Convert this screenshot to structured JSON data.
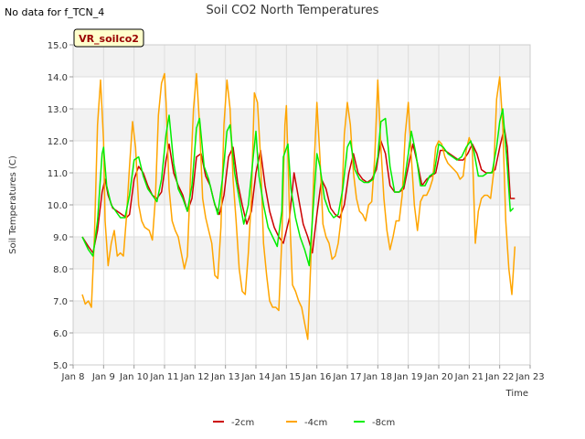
{
  "nodata_text": "No data for f_TCN_4",
  "chart_data": {
    "type": "line",
    "title": "Soil CO2 North Temperatures",
    "xlabel": "Time",
    "ylabel": "Soil Temperatures (C)",
    "ylim": [
      5.0,
      15.0
    ],
    "xlim": [
      8,
      23
    ],
    "x_ticks": [
      "Jan 8",
      "Jan 9",
      "Jan 10",
      "Jan 11",
      "Jan 12",
      "Jan 13",
      "Jan 14",
      "Jan 15",
      "Jan 16",
      "Jan 17",
      "Jan 18",
      "Jan 19",
      "Jan 20",
      "Jan 21",
      "Jan 22",
      "Jan 23"
    ],
    "y_ticks": [
      "5.0",
      "6.0",
      "7.0",
      "8.0",
      "9.0",
      "10.0",
      "11.0",
      "12.0",
      "13.0",
      "14.0",
      "15.0"
    ],
    "station_label": "VR_soilco2",
    "grid": true,
    "legend_position": "bottom-center",
    "series": [
      {
        "name": "-2cm",
        "color": "#cc0000",
        "x": [
          8.3,
          8.5,
          8.65,
          8.8,
          8.95,
          9.05,
          9.15,
          9.3,
          9.45,
          9.6,
          9.75,
          9.85,
          10.0,
          10.15,
          10.3,
          10.45,
          10.6,
          10.75,
          10.9,
          11.05,
          11.15,
          11.3,
          11.45,
          11.6,
          11.75,
          11.9,
          12.05,
          12.2,
          12.35,
          12.5,
          12.65,
          12.8,
          12.95,
          13.1,
          13.25,
          13.4,
          13.55,
          13.7,
          13.85,
          14.0,
          14.15,
          14.3,
          14.45,
          14.6,
          14.75,
          14.9,
          15.1,
          15.25,
          15.4,
          15.55,
          15.7,
          15.85,
          16.0,
          16.15,
          16.3,
          16.45,
          16.6,
          16.75,
          16.9,
          17.05,
          17.2,
          17.35,
          17.5,
          17.65,
          17.8,
          17.95,
          18.1,
          18.25,
          18.4,
          18.55,
          18.7,
          18.85,
          19.0,
          19.15,
          19.3,
          19.45,
          19.6,
          19.75,
          19.9,
          20.05,
          20.2,
          20.35,
          20.5,
          20.65,
          20.8,
          20.95,
          21.1,
          21.25,
          21.4,
          21.55,
          21.7,
          21.85,
          22.0,
          22.15,
          22.25,
          22.35,
          22.5
        ],
        "values": [
          9.0,
          8.7,
          8.5,
          9.2,
          10.4,
          10.8,
          10.3,
          9.9,
          9.8,
          9.7,
          9.6,
          9.7,
          10.8,
          11.2,
          11.0,
          10.6,
          10.3,
          10.2,
          10.4,
          11.4,
          11.9,
          11.0,
          10.6,
          10.3,
          9.8,
          10.2,
          11.5,
          11.6,
          10.9,
          10.6,
          10.0,
          9.7,
          10.3,
          11.5,
          11.8,
          10.7,
          10.0,
          9.4,
          9.8,
          11.0,
          11.7,
          10.6,
          9.8,
          9.3,
          9.0,
          8.8,
          9.6,
          11.0,
          10.2,
          9.4,
          9.0,
          8.5,
          9.7,
          10.8,
          10.5,
          9.9,
          9.7,
          9.6,
          10.0,
          11.0,
          11.6,
          11.0,
          10.8,
          10.7,
          10.8,
          11.1,
          12.0,
          11.6,
          10.6,
          10.4,
          10.4,
          10.5,
          11.2,
          11.9,
          11.3,
          10.6,
          10.8,
          10.9,
          11.0,
          11.7,
          11.7,
          11.6,
          11.5,
          11.4,
          11.4,
          11.6,
          11.9,
          11.6,
          11.1,
          11.0,
          11.0,
          11.1,
          11.8,
          12.4,
          11.8,
          10.2,
          10.2
        ]
      },
      {
        "name": "-4cm",
        "color": "#ffa500",
        "x": [
          8.3,
          8.4,
          8.5,
          8.6,
          8.7,
          8.8,
          8.9,
          9.0,
          9.05,
          9.15,
          9.25,
          9.35,
          9.45,
          9.55,
          9.65,
          9.75,
          9.85,
          9.95,
          10.05,
          10.15,
          10.25,
          10.35,
          10.5,
          10.6,
          10.7,
          10.8,
          10.9,
          11.0,
          11.05,
          11.15,
          11.25,
          11.35,
          11.45,
          11.55,
          11.65,
          11.75,
          11.85,
          11.95,
          12.05,
          12.15,
          12.25,
          12.35,
          12.45,
          12.55,
          12.65,
          12.75,
          12.85,
          12.95,
          13.05,
          13.15,
          13.25,
          13.35,
          13.45,
          13.55,
          13.65,
          13.75,
          13.85,
          13.95,
          14.05,
          14.15,
          14.25,
          14.35,
          14.45,
          14.55,
          14.65,
          14.75,
          14.85,
          14.95,
          15.0,
          15.1,
          15.2,
          15.3,
          15.4,
          15.5,
          15.6,
          15.7,
          15.8,
          15.9,
          16.0,
          16.1,
          16.2,
          16.3,
          16.4,
          16.5,
          16.6,
          16.7,
          16.8,
          16.9,
          17.0,
          17.1,
          17.2,
          17.3,
          17.4,
          17.5,
          17.6,
          17.7,
          17.8,
          17.9,
          18.0,
          18.1,
          18.2,
          18.3,
          18.4,
          18.5,
          18.6,
          18.7,
          18.8,
          18.9,
          19.0,
          19.1,
          19.2,
          19.3,
          19.4,
          19.5,
          19.6,
          19.7,
          19.8,
          19.9,
          20.0,
          20.1,
          20.2,
          20.3,
          20.4,
          20.5,
          20.6,
          20.7,
          20.8,
          20.9,
          21.0,
          21.1,
          21.2,
          21.3,
          21.4,
          21.5,
          21.6,
          21.7,
          21.8,
          21.9,
          22.0,
          22.1,
          22.2,
          22.3,
          22.4,
          22.5
        ],
        "values": [
          7.2,
          6.9,
          7.0,
          6.8,
          9.0,
          12.5,
          13.9,
          12.0,
          9.5,
          8.1,
          8.8,
          9.2,
          8.4,
          8.5,
          8.4,
          9.6,
          11.2,
          12.6,
          11.8,
          10.0,
          9.5,
          9.3,
          9.2,
          8.9,
          10.2,
          12.8,
          13.8,
          14.1,
          13.2,
          10.5,
          9.5,
          9.2,
          9.0,
          8.5,
          8.0,
          8.4,
          10.8,
          13.0,
          14.1,
          12.5,
          10.2,
          9.6,
          9.2,
          8.8,
          7.8,
          7.7,
          9.3,
          12.5,
          13.9,
          13.0,
          10.8,
          9.5,
          8.0,
          7.3,
          7.2,
          8.5,
          10.2,
          13.5,
          13.2,
          11.5,
          8.8,
          7.8,
          7.0,
          6.8,
          6.8,
          6.7,
          8.9,
          12.5,
          13.1,
          9.8,
          7.5,
          7.3,
          7.0,
          6.8,
          6.3,
          5.8,
          8.2,
          11.0,
          13.2,
          11.5,
          9.4,
          9.0,
          8.8,
          8.3,
          8.4,
          8.8,
          9.6,
          12.2,
          13.2,
          12.5,
          11.0,
          10.2,
          9.8,
          9.7,
          9.5,
          10.0,
          10.1,
          11.5,
          13.9,
          11.8,
          10.2,
          9.2,
          8.6,
          9.0,
          9.5,
          9.5,
          10.3,
          12.2,
          13.2,
          11.5,
          10.0,
          9.2,
          10.1,
          10.3,
          10.3,
          10.5,
          10.8,
          11.8,
          12.0,
          11.9,
          11.5,
          11.3,
          11.2,
          11.1,
          11.0,
          10.8,
          10.9,
          11.7,
          12.1,
          11.8,
          8.8,
          9.8,
          10.2,
          10.3,
          10.3,
          10.2,
          11.0,
          13.3,
          14.0,
          12.5,
          9.5,
          8.0,
          7.2,
          8.7
        ]
      },
      {
        "name": "-8cm",
        "color": "#00ee00",
        "x": [
          8.3,
          8.5,
          8.65,
          8.8,
          8.95,
          9.0,
          9.1,
          9.25,
          9.4,
          9.55,
          9.7,
          9.85,
          10.0,
          10.15,
          10.3,
          10.45,
          10.6,
          10.75,
          10.9,
          11.05,
          11.15,
          11.3,
          11.45,
          11.6,
          11.75,
          11.9,
          12.05,
          12.15,
          12.3,
          12.45,
          12.6,
          12.75,
          12.9,
          13.05,
          13.15,
          13.3,
          13.45,
          13.6,
          13.75,
          13.9,
          14.0,
          14.1,
          14.25,
          14.4,
          14.55,
          14.7,
          14.85,
          14.9,
          15.05,
          15.15,
          15.3,
          15.45,
          15.6,
          15.75,
          15.85,
          16.0,
          16.1,
          16.25,
          16.4,
          16.55,
          16.7,
          16.85,
          17.0,
          17.1,
          17.25,
          17.4,
          17.55,
          17.7,
          17.85,
          18.0,
          18.1,
          18.25,
          18.4,
          18.55,
          18.7,
          18.85,
          19.0,
          19.1,
          19.25,
          19.4,
          19.55,
          19.7,
          19.85,
          20.0,
          20.15,
          20.3,
          20.45,
          20.6,
          20.75,
          20.9,
          21.05,
          21.15,
          21.3,
          21.45,
          21.6,
          21.75,
          21.9,
          22.0,
          22.1,
          22.25,
          22.35,
          22.45
        ],
        "values": [
          9.0,
          8.6,
          8.4,
          9.5,
          11.6,
          11.8,
          10.6,
          10.0,
          9.8,
          9.6,
          9.6,
          10.3,
          11.4,
          11.5,
          10.9,
          10.5,
          10.3,
          10.1,
          10.8,
          12.2,
          12.8,
          11.3,
          10.5,
          10.2,
          9.8,
          10.6,
          12.4,
          12.7,
          11.2,
          10.8,
          10.2,
          9.7,
          10.8,
          12.3,
          12.5,
          11.0,
          10.2,
          9.4,
          10.0,
          11.4,
          12.3,
          10.9,
          10.0,
          9.3,
          9.0,
          8.7,
          9.8,
          11.5,
          11.9,
          10.5,
          9.6,
          9.0,
          8.6,
          8.1,
          9.5,
          11.6,
          11.2,
          10.2,
          9.8,
          9.6,
          9.7,
          10.5,
          11.8,
          12.0,
          11.1,
          10.8,
          10.7,
          10.7,
          10.8,
          11.5,
          12.6,
          12.7,
          11.2,
          10.4,
          10.4,
          10.6,
          11.6,
          12.3,
          11.6,
          10.6,
          10.6,
          10.9,
          11.0,
          11.9,
          11.8,
          11.6,
          11.5,
          11.4,
          11.5,
          11.8,
          12.0,
          11.7,
          10.9,
          10.9,
          11.0,
          11.0,
          11.8,
          12.6,
          13.0,
          11.2,
          9.8,
          9.9
        ]
      }
    ]
  }
}
